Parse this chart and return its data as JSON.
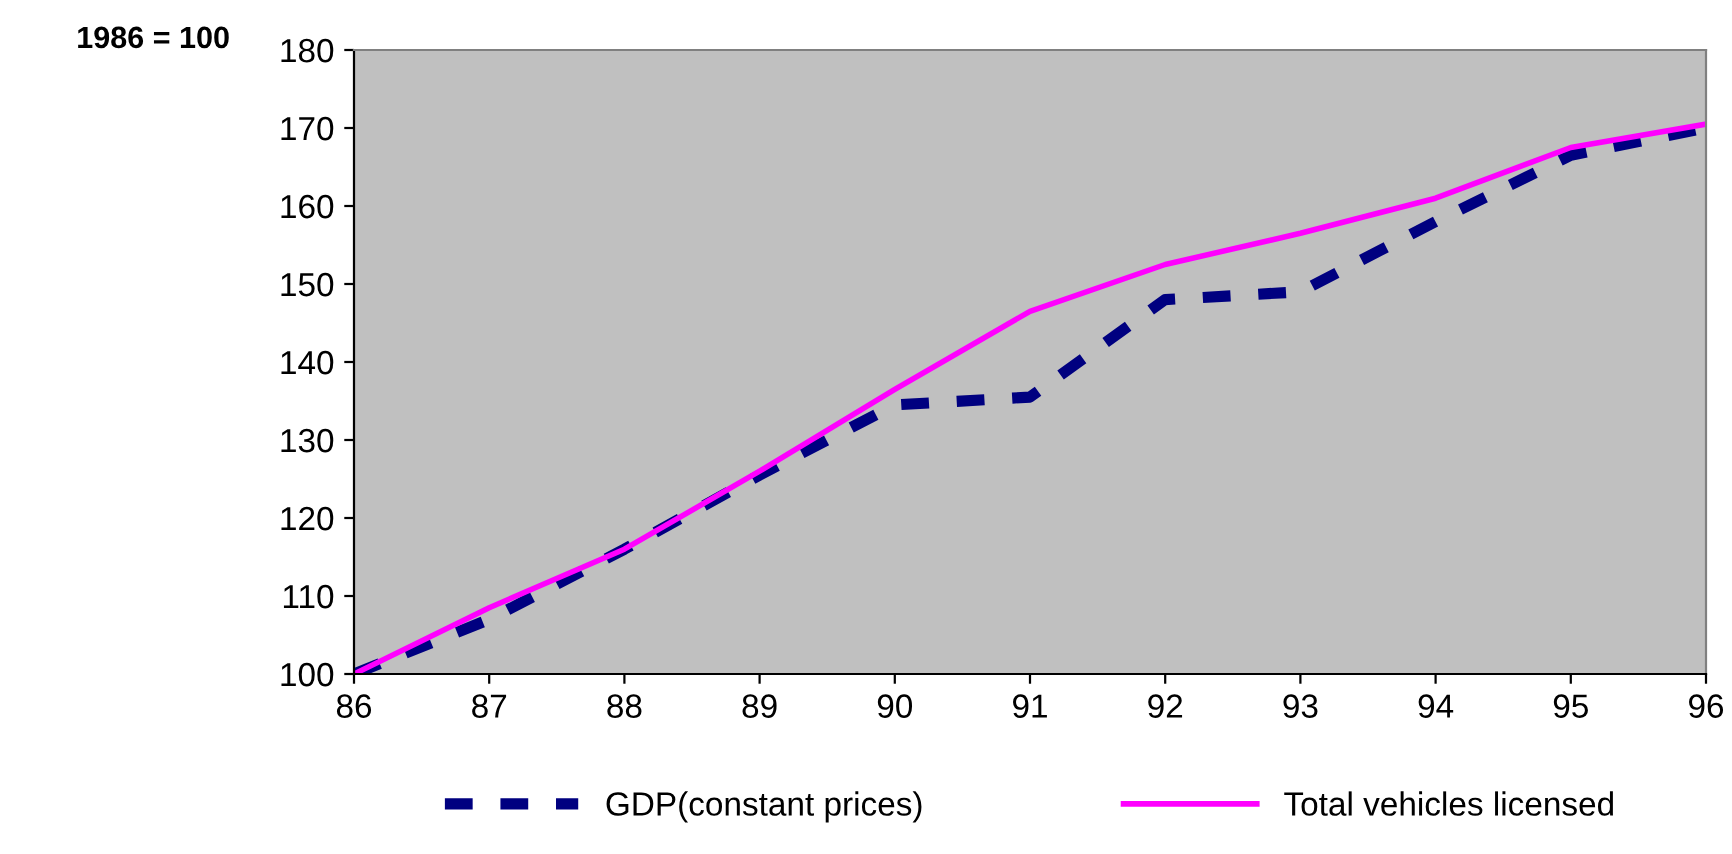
{
  "chart_data": {
    "type": "line",
    "ylabel": "1986 = 100",
    "x": [
      86,
      87,
      88,
      89,
      90,
      91,
      92,
      93,
      94,
      95,
      96
    ],
    "series": [
      {
        "name": "GDP(constant prices)",
        "color": "#000080",
        "line_style": "dashed",
        "values": [
          100,
          107,
          116,
          125.5,
          134.5,
          135.5,
          148,
          149,
          158,
          166.5,
          170
        ]
      },
      {
        "name": "Total vehicles licensed",
        "color": "#ff00ff",
        "line_style": "solid",
        "values": [
          100,
          108.5,
          116,
          126,
          136.5,
          146.5,
          152.5,
          156.5,
          161,
          167.5,
          170.5
        ]
      }
    ],
    "xlim": [
      86,
      96
    ],
    "xticks": [
      86,
      87,
      88,
      89,
      90,
      91,
      92,
      93,
      94,
      95,
      96
    ],
    "ylim": [
      100,
      180
    ],
    "yticks": [
      100,
      110,
      120,
      130,
      140,
      150,
      160,
      170,
      180
    ],
    "grid": false,
    "legend": "bottom",
    "marker": "none"
  }
}
